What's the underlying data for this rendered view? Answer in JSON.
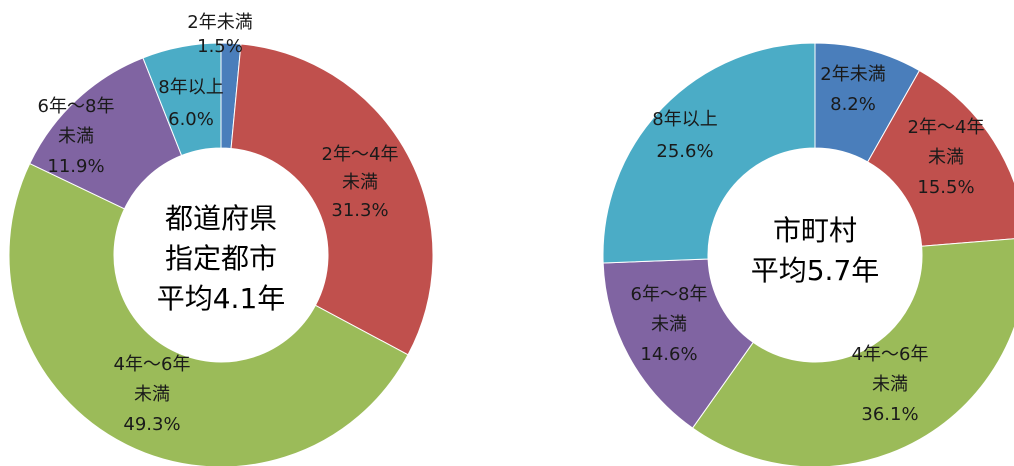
{
  "chart_data": [
    {
      "type": "pie",
      "title": "",
      "center_lines": [
        "都道府県",
        "指定都市",
        "平均4.1年"
      ],
      "slices": [
        {
          "name": "2年未満",
          "label_lines": [
            "2年未満"
          ],
          "value": 1.5,
          "value_label": "1.5%",
          "color": "#4a7ebb"
        },
        {
          "name": "2年～4年未満",
          "label_lines": [
            "2年～4年",
            "未満"
          ],
          "value": 31.3,
          "value_label": "31.3%",
          "color": "#c0504d"
        },
        {
          "name": "4年～6年未満",
          "label_lines": [
            "4年～6年",
            "未満"
          ],
          "value": 49.3,
          "value_label": "49.3%",
          "color": "#9bbb59"
        },
        {
          "name": "6年～8年未満",
          "label_lines": [
            "6年～8年",
            "未満"
          ],
          "value": 11.9,
          "value_label": "11.9%",
          "color": "#8064a2"
        },
        {
          "name": "8年以上",
          "label_lines": [
            "8年以上"
          ],
          "value": 6.0,
          "value_label": "6.0%",
          "color": "#4bacc6"
        }
      ]
    },
    {
      "type": "pie",
      "title": "",
      "center_lines": [
        "市町村",
        "平均5.7年"
      ],
      "slices": [
        {
          "name": "2年未満",
          "label_lines": [
            "2年未満"
          ],
          "value": 8.2,
          "value_label": "8.2%",
          "color": "#4a7ebb"
        },
        {
          "name": "2年～4年未満",
          "label_lines": [
            "2年～4年",
            "未満"
          ],
          "value": 15.5,
          "value_label": "15.5%",
          "color": "#c0504d"
        },
        {
          "name": "4年～6年未満",
          "label_lines": [
            "4年～6年",
            "未満"
          ],
          "value": 36.1,
          "value_label": "36.1%",
          "color": "#9bbb59"
        },
        {
          "name": "6年～8年未満",
          "label_lines": [
            "6年～8年",
            "未満"
          ],
          "value": 14.6,
          "value_label": "14.6%",
          "color": "#8064a2"
        },
        {
          "name": "8年以上",
          "label_lines": [
            "8年以上"
          ],
          "value": 25.6,
          "value_label": "25.6%",
          "color": "#4bacc6"
        }
      ]
    }
  ]
}
